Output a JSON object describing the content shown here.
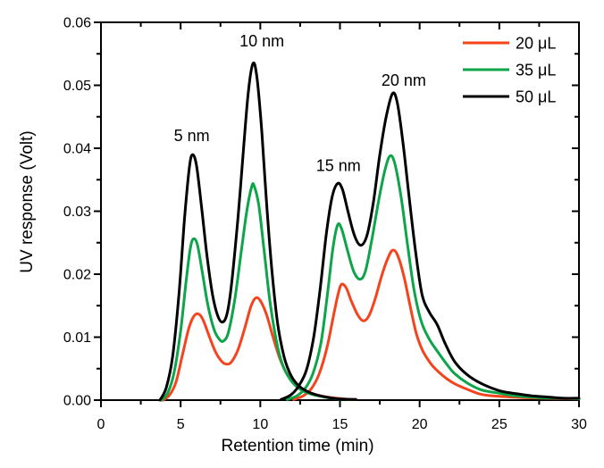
{
  "chart_data": {
    "type": "line",
    "title": "",
    "xlabel": "Retention time (min)",
    "ylabel": "UV response (Volt)",
    "xlim": [
      0,
      30
    ],
    "ylim": [
      0,
      0.06
    ],
    "grid": false,
    "legend_position": "top-right-inside",
    "x_major_ticks": {
      "values": [
        0,
        5,
        10,
        15,
        20,
        25,
        30
      ],
      "labels": [
        "0",
        "5",
        "10",
        "15",
        "20",
        "25",
        "30"
      ]
    },
    "x_minor_ticks": [
      2.5,
      7.5,
      12.5,
      17.5,
      22.5,
      27.5
    ],
    "y_major_ticks": {
      "values": [
        0,
        0.01,
        0.02,
        0.03,
        0.04,
        0.05,
        0.06
      ],
      "labels": [
        "0.00",
        "0.01",
        "0.02",
        "0.03",
        "0.04",
        "0.05",
        "0.06"
      ]
    },
    "y_minor_ticks": [
      0.005,
      0.015,
      0.025,
      0.035,
      0.045,
      0.055
    ],
    "series": [
      {
        "name": "20 μL",
        "color": "#f5431e",
        "segments": [
          [
            [
              3.9,
              0
            ],
            [
              4.3,
              0.0008
            ],
            [
              4.7,
              0.0028
            ],
            [
              5.1,
              0.007
            ],
            [
              5.5,
              0.0113
            ],
            [
              5.8,
              0.0132
            ],
            [
              6.1,
              0.0137
            ],
            [
              6.4,
              0.0128
            ],
            [
              6.8,
              0.0101
            ],
            [
              7.2,
              0.0076
            ],
            [
              7.6,
              0.0061
            ],
            [
              7.9,
              0.0057
            ],
            [
              8.2,
              0.0061
            ],
            [
              8.6,
              0.008
            ],
            [
              9.0,
              0.0112
            ],
            [
              9.4,
              0.0148
            ],
            [
              9.7,
              0.0162
            ],
            [
              10.0,
              0.0158
            ],
            [
              10.4,
              0.0135
            ],
            [
              10.8,
              0.01
            ],
            [
              11.2,
              0.0068
            ],
            [
              11.6,
              0.0045
            ],
            [
              12.1,
              0.0028
            ],
            [
              12.7,
              0.0017
            ],
            [
              13.3,
              0.001
            ],
            [
              14.2,
              0.0005
            ],
            [
              15.2,
              0.0002
            ],
            [
              16.0,
              0.0001
            ]
          ],
          [
            [
              12.1,
              0.0001
            ],
            [
              12.7,
              0.0007
            ],
            [
              13.2,
              0.0018
            ],
            [
              13.7,
              0.0042
            ],
            [
              14.2,
              0.0085
            ],
            [
              14.6,
              0.0135
            ],
            [
              14.9,
              0.017
            ],
            [
              15.1,
              0.0184
            ],
            [
              15.4,
              0.0178
            ],
            [
              15.7,
              0.0158
            ],
            [
              16.1,
              0.0136
            ],
            [
              16.45,
              0.0126
            ],
            [
              16.8,
              0.0133
            ],
            [
              17.2,
              0.016
            ],
            [
              17.6,
              0.0196
            ],
            [
              18.0,
              0.0225
            ],
            [
              18.3,
              0.0238
            ],
            [
              18.6,
              0.0231
            ],
            [
              19.0,
              0.0198
            ],
            [
              19.4,
              0.015
            ],
            [
              19.8,
              0.0105
            ],
            [
              20.2,
              0.0078
            ],
            [
              20.7,
              0.0058
            ],
            [
              21.1,
              0.0047
            ],
            [
              21.7,
              0.0034
            ],
            [
              22.2,
              0.0026
            ],
            [
              23.0,
              0.0017
            ],
            [
              23.9,
              0.0009
            ],
            [
              25.0,
              0.0006
            ],
            [
              26.5,
              0.0004
            ],
            [
              28.0,
              0.0003
            ],
            [
              30.0,
              0.0002
            ]
          ]
        ]
      },
      {
        "name": "35 μL",
        "color": "#0da44a",
        "segments": [
          [
            [
              3.8,
              0
            ],
            [
              4.2,
              0.0012
            ],
            [
              4.6,
              0.0045
            ],
            [
              5.0,
              0.011
            ],
            [
              5.35,
              0.019
            ],
            [
              5.6,
              0.024
            ],
            [
              5.8,
              0.0256
            ],
            [
              6.05,
              0.0247
            ],
            [
              6.35,
              0.0205
            ],
            [
              6.7,
              0.0152
            ],
            [
              7.1,
              0.0112
            ],
            [
              7.45,
              0.0096
            ],
            [
              7.7,
              0.0094
            ],
            [
              8.0,
              0.0108
            ],
            [
              8.4,
              0.016
            ],
            [
              8.8,
              0.0235
            ],
            [
              9.15,
              0.03
            ],
            [
              9.45,
              0.0338
            ],
            [
              9.6,
              0.0341
            ],
            [
              9.9,
              0.031
            ],
            [
              10.25,
              0.0235
            ],
            [
              10.6,
              0.0158
            ],
            [
              11.0,
              0.0095
            ],
            [
              11.4,
              0.0056
            ],
            [
              11.9,
              0.0032
            ],
            [
              12.4,
              0.0019
            ],
            [
              13.0,
              0.0011
            ],
            [
              13.8,
              0.0006
            ],
            [
              14.8,
              0.0002
            ],
            [
              15.6,
              0.0001
            ]
          ],
          [
            [
              11.7,
              0.0001
            ],
            [
              12.3,
              0.0007
            ],
            [
              12.8,
              0.0018
            ],
            [
              13.3,
              0.0042
            ],
            [
              13.8,
              0.009
            ],
            [
              14.2,
              0.0165
            ],
            [
              14.55,
              0.024
            ],
            [
              14.85,
              0.0278
            ],
            [
              15.1,
              0.0272
            ],
            [
              15.45,
              0.024
            ],
            [
              15.85,
              0.0205
            ],
            [
              16.25,
              0.0192
            ],
            [
              16.6,
              0.0205
            ],
            [
              17.0,
              0.0255
            ],
            [
              17.45,
              0.032
            ],
            [
              17.85,
              0.0368
            ],
            [
              18.15,
              0.0388
            ],
            [
              18.45,
              0.0375
            ],
            [
              18.85,
              0.032
            ],
            [
              19.25,
              0.0245
            ],
            [
              19.65,
              0.0175
            ],
            [
              20.1,
              0.0125
            ],
            [
              20.6,
              0.0097
            ],
            [
              21.1,
              0.0078
            ],
            [
              21.7,
              0.0057
            ],
            [
              22.2,
              0.0042
            ],
            [
              23.0,
              0.0027
            ],
            [
              23.9,
              0.0016
            ],
            [
              25.0,
              0.0011
            ],
            [
              26.0,
              0.0007
            ],
            [
              27.5,
              0.0004
            ],
            [
              29.0,
              0.0003
            ],
            [
              30.0,
              0.0002
            ]
          ]
        ]
      },
      {
        "name": "50 μL",
        "color": "#000000",
        "segments": [
          [
            [
              3.7,
              0
            ],
            [
              4.1,
              0.002
            ],
            [
              4.5,
              0.007
            ],
            [
              4.9,
              0.017
            ],
            [
              5.25,
              0.029
            ],
            [
              5.55,
              0.037
            ],
            [
              5.75,
              0.039
            ],
            [
              6.0,
              0.0372
            ],
            [
              6.3,
              0.031
            ],
            [
              6.65,
              0.023
            ],
            [
              7.0,
              0.0168
            ],
            [
              7.3,
              0.0136
            ],
            [
              7.6,
              0.0124
            ],
            [
              7.9,
              0.0136
            ],
            [
              8.2,
              0.0185
            ],
            [
              8.6,
              0.029
            ],
            [
              8.95,
              0.04
            ],
            [
              9.25,
              0.049
            ],
            [
              9.55,
              0.0535
            ],
            [
              9.8,
              0.051
            ],
            [
              10.1,
              0.0425
            ],
            [
              10.4,
              0.031
            ],
            [
              10.75,
              0.02
            ],
            [
              11.1,
              0.012
            ],
            [
              11.5,
              0.0068
            ],
            [
              11.95,
              0.0038
            ],
            [
              12.45,
              0.0022
            ],
            [
              13.1,
              0.0012
            ],
            [
              13.9,
              0.0006
            ],
            [
              14.9,
              0.0002
            ],
            [
              16.0,
              0.0001
            ]
          ],
          [
            [
              11.3,
              0.0001
            ],
            [
              11.9,
              0.0008
            ],
            [
              12.4,
              0.0022
            ],
            [
              12.9,
              0.0048
            ],
            [
              13.35,
              0.01
            ],
            [
              13.75,
              0.0175
            ],
            [
              14.15,
              0.0265
            ],
            [
              14.5,
              0.0322
            ],
            [
              14.85,
              0.0344
            ],
            [
              15.15,
              0.0335
            ],
            [
              15.5,
              0.03
            ],
            [
              15.9,
              0.0262
            ],
            [
              16.3,
              0.0246
            ],
            [
              16.7,
              0.0262
            ],
            [
              17.1,
              0.0315
            ],
            [
              17.5,
              0.039
            ],
            [
              17.9,
              0.045
            ],
            [
              18.3,
              0.0487
            ],
            [
              18.6,
              0.0472
            ],
            [
              18.95,
              0.041
            ],
            [
              19.35,
              0.032
            ],
            [
              19.75,
              0.0235
            ],
            [
              20.15,
              0.0168
            ],
            [
              20.6,
              0.014
            ],
            [
              21.1,
              0.012
            ],
            [
              21.6,
              0.009
            ],
            [
              22.2,
              0.0061
            ],
            [
              23.0,
              0.004
            ],
            [
              23.9,
              0.0026
            ],
            [
              25.0,
              0.0015
            ],
            [
              26.1,
              0.001
            ],
            [
              27.0,
              0.0007
            ],
            [
              28.0,
              0.0005
            ],
            [
              29.0,
              0.0003
            ],
            [
              30.0,
              0.0003
            ]
          ]
        ]
      }
    ],
    "annotations": [
      {
        "text": "5 nm",
        "x": 5.7,
        "y": 0.042
      },
      {
        "text": "10 nm",
        "x": 10.1,
        "y": 0.057
      },
      {
        "text": "15 nm",
        "x": 14.9,
        "y": 0.0372
      },
      {
        "text": "20 nm",
        "x": 19.0,
        "y": 0.0508
      }
    ]
  }
}
